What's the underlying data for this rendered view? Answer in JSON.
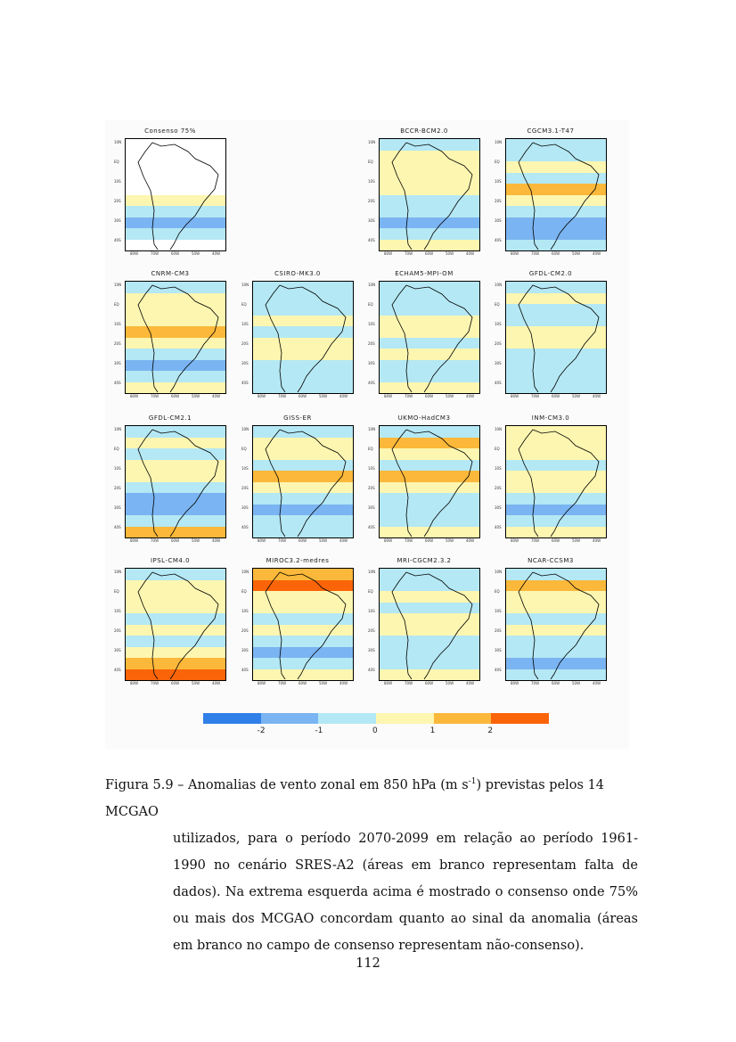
{
  "figure": {
    "panels": [
      {
        "title": "Consenso 75%",
        "bands": [
          null,
          null,
          null,
          null,
          null,
          0.5,
          -0.5,
          -1.5,
          -0.5,
          null
        ]
      },
      {
        "title": "BCCR-BCM2.0",
        "bands": [
          -0.5,
          0.5,
          0.5,
          0.5,
          0.5,
          -0.5,
          -0.5,
          -1.5,
          -0.5,
          0.5
        ]
      },
      {
        "title": "CGCM3.1-T47",
        "bands": [
          -0.5,
          -0.5,
          0.5,
          -0.5,
          1.5,
          0.5,
          -0.5,
          -1.5,
          -1.5,
          -0.5
        ]
      },
      {
        "title": "CNRM-CM3",
        "bands": [
          -0.5,
          0.5,
          0.5,
          0.5,
          1.5,
          0.5,
          -0.5,
          -1.5,
          -0.5,
          0.5
        ]
      },
      {
        "title": "CSIRO-MK3.0",
        "bands": [
          -0.5,
          -0.5,
          -0.5,
          0.5,
          -0.5,
          0.5,
          0.5,
          -0.5,
          -0.5,
          -0.5
        ]
      },
      {
        "title": "ECHAM5-MPI-OM",
        "bands": [
          -0.5,
          -0.5,
          -0.5,
          0.5,
          0.5,
          -0.5,
          0.5,
          -0.5,
          -0.5,
          0.5
        ]
      },
      {
        "title": "GFDL-CM2.0",
        "bands": [
          -0.5,
          0.5,
          -0.5,
          -0.5,
          0.5,
          0.5,
          -0.5,
          -0.5,
          -0.5,
          -0.5
        ]
      },
      {
        "title": "GFDL-CM2.1",
        "bands": [
          -0.5,
          0.5,
          -0.5,
          0.5,
          0.5,
          -0.5,
          -1.5,
          -1.5,
          -0.5,
          1.5
        ]
      },
      {
        "title": "GISS-ER",
        "bands": [
          -0.5,
          0.5,
          0.5,
          -0.5,
          1.5,
          0.5,
          -0.5,
          -1.5,
          -0.5,
          -0.5
        ]
      },
      {
        "title": "UKMO-HadCM3",
        "bands": [
          -0.5,
          1.5,
          0.5,
          -0.5,
          1.5,
          0.5,
          -0.5,
          -0.5,
          -0.5,
          0.5
        ]
      },
      {
        "title": "INM-CM3.0",
        "bands": [
          0.5,
          0.5,
          0.5,
          -0.5,
          0.5,
          0.5,
          -0.5,
          -1.5,
          -0.5,
          0.5
        ]
      },
      {
        "title": "IPSL-CM4.0",
        "bands": [
          -0.5,
          0.5,
          0.5,
          0.5,
          -0.5,
          0.5,
          -0.5,
          0.5,
          1.5,
          2.5
        ]
      },
      {
        "title": "MIROC3.2-medres",
        "bands": [
          1.5,
          2.5,
          0.5,
          0.5,
          -0.5,
          0.5,
          -0.5,
          -1.5,
          -0.5,
          0.5
        ]
      },
      {
        "title": "MRI-CGCM2.3.2",
        "bands": [
          -0.5,
          -0.5,
          0.5,
          -0.5,
          0.5,
          0.5,
          -0.5,
          -0.5,
          -0.5,
          0.5
        ]
      },
      {
        "title": "NCAR-CCSM3",
        "bands": [
          -0.5,
          1.5,
          0.5,
          0.5,
          -0.5,
          0.5,
          -0.5,
          -0.5,
          -1.5,
          -0.5
        ]
      }
    ],
    "lat_ticks": [
      "10N",
      "EQ",
      "10S",
      "20S",
      "30S",
      "40S"
    ],
    "lon_ticks": [
      "80W",
      "70W",
      "60W",
      "50W",
      "40W"
    ],
    "colorbar": {
      "colors": [
        "#2f7fe8",
        "#7ab4f2",
        "#b4e8f4",
        "#fdf6b0",
        "#fbb83a",
        "#fb6408"
      ],
      "labels": [
        "-2",
        "-1",
        "0",
        "1",
        "2"
      ]
    }
  },
  "caption": {
    "first_line": "Figura 5.9 – Anomalias de vento zonal em 850 hPa (m s-1) previstas pelos 14 MCGAO",
    "rest": "utilizados, para o período 2070-2099 em relação ao período 1961-1990 no cenário SRES-A2 (áreas em branco representam falta de dados). Na extrema esquerda acima é mostrado o consenso onde 75% ou mais dos MCGAO concordam quanto ao sinal da anomalia (áreas em branco no campo de consenso representam não-consenso)."
  },
  "page_number": "112"
}
